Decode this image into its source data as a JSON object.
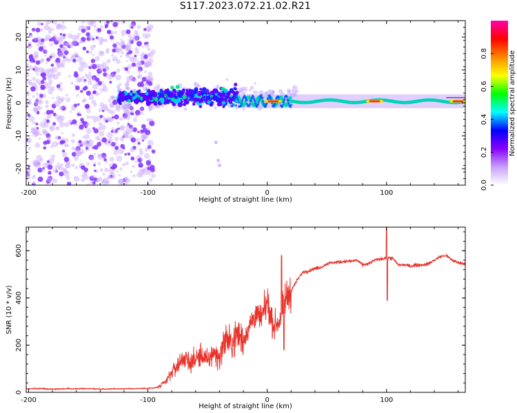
{
  "figure": {
    "title": "S117.2023.072.21.02.R21"
  },
  "colorbar": {
    "label": "Normalized spectral amplitude",
    "ticks": [
      "0.0",
      "0.2",
      "0.4",
      "0.6",
      "0.8"
    ],
    "tick_values": [
      0.0,
      0.2,
      0.4,
      0.6,
      0.8
    ],
    "range": [
      0,
      1
    ],
    "colors": [
      "#ffffff",
      "#c8a0ff",
      "#8800ff",
      "#0000ff",
      "#00ffff",
      "#00ff00",
      "#ffff00",
      "#ff8800",
      "#ff0000",
      "#ff00aa"
    ]
  },
  "chart_data": [
    {
      "type": "heatmap",
      "title": "",
      "xlabel": "Height of straight line (km)",
      "ylabel": "Frequency (Hz)",
      "xlim": [
        -202,
        166
      ],
      "ylim": [
        -25,
        25
      ],
      "xticks": [
        -200,
        -100,
        0,
        100
      ],
      "xtick_labels": [
        "-200",
        "-100",
        "0",
        "100"
      ],
      "yticks": [
        -20,
        -10,
        0,
        10,
        20
      ],
      "ytick_labels": [
        "-20",
        "-10",
        "0",
        "10",
        "20"
      ],
      "description_of_content": "Scattered noise at heights below about -95 km; dominant spectral line near 0 Hz from about -125 km upward, becoming a narrow strong carrier above 0 km",
      "carrier_frequency_hz": 0.5,
      "scatter_region_km": [
        -202,
        -95
      ],
      "blob_region_km": [
        -125,
        -25
      ],
      "line_region_km": [
        -25,
        166
      ],
      "peak_positions_km": [
        5,
        90,
        160
      ],
      "colors": {
        "scatter": "#8a3cff",
        "blob": "#6000ff",
        "line": "#00d4b4",
        "peak": "#e83030"
      }
    },
    {
      "type": "line",
      "title": "",
      "xlabel": "Height of straight line (km)",
      "ylabel": "SNR (10 * v/v)",
      "xlim": [
        -202,
        166
      ],
      "ylim": [
        0,
        700
      ],
      "xticks": [
        -200,
        -100,
        0,
        100
      ],
      "xtick_labels": [
        "-200",
        "-100",
        "0",
        "100"
      ],
      "yticks": [
        0,
        200,
        400,
        600
      ],
      "ytick_labels": [
        "0",
        "200",
        "400",
        "600"
      ],
      "series": [
        {
          "name": "SNR",
          "color": "#e8322a",
          "x": [
            -202,
            -190,
            -180,
            -170,
            -160,
            -150,
            -140,
            -130,
            -120,
            -110,
            -100,
            -95,
            -90,
            -85,
            -80,
            -75,
            -70,
            -65,
            -60,
            -55,
            -50,
            -45,
            -40,
            -35,
            -30,
            -25,
            -20,
            -15,
            -10,
            -5,
            0,
            5,
            10,
            15,
            20,
            25,
            30,
            35,
            40,
            45,
            50,
            55,
            60,
            65,
            70,
            75,
            80,
            85,
            90,
            95,
            100,
            105,
            110,
            115,
            120,
            125,
            130,
            135,
            140,
            145,
            150,
            155,
            160,
            166
          ],
          "values": [
            15,
            16,
            14,
            15,
            15,
            16,
            14,
            15,
            15,
            16,
            17,
            18,
            25,
            45,
            85,
            115,
            150,
            125,
            140,
            160,
            130,
            170,
            145,
            230,
            200,
            250,
            220,
            280,
            330,
            310,
            380,
            280,
            300,
            390,
            430,
            475,
            510,
            515,
            525,
            530,
            545,
            550,
            552,
            555,
            555,
            560,
            540,
            545,
            560,
            565,
            570,
            568,
            540,
            540,
            535,
            540,
            540,
            545,
            560,
            575,
            580,
            560,
            550,
            545
          ],
          "spikes": [
            {
              "x": 12,
              "value": 580
            },
            {
              "x": 14,
              "value": 180
            },
            {
              "x": 100,
              "value": 700
            },
            {
              "x": 100.6,
              "value": 390
            }
          ]
        }
      ]
    }
  ]
}
